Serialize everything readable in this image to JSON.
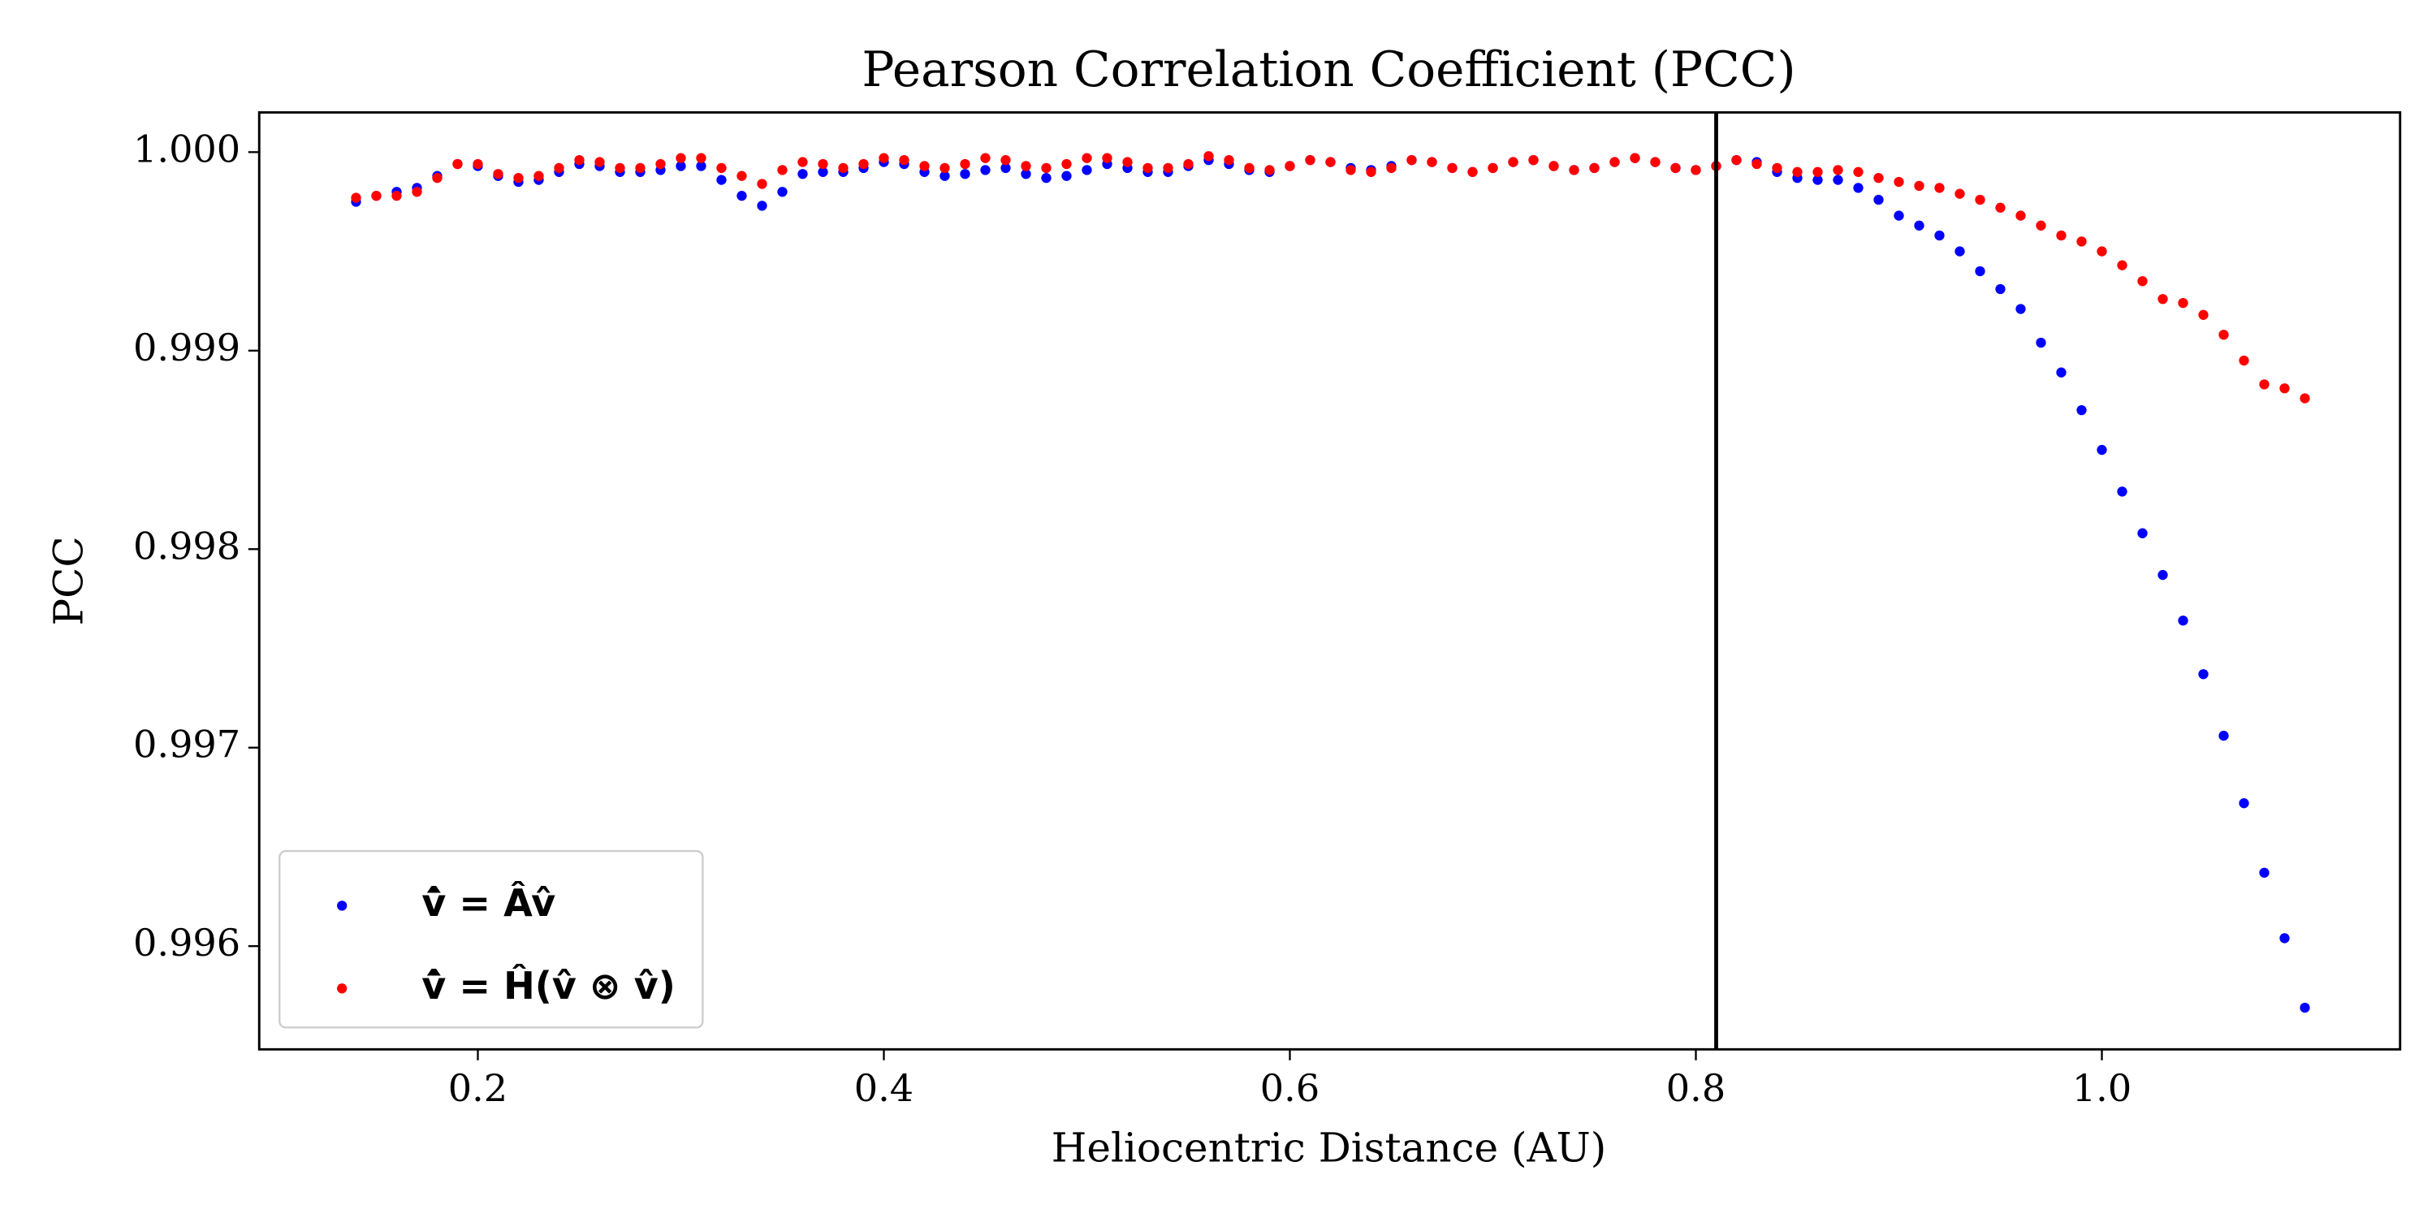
{
  "chart_data": {
    "type": "scatter",
    "title": "Pearson Correlation Coefficient (PCC)",
    "xlabel": "Heliocentric Distance (AU)",
    "ylabel": "PCC",
    "x": [
      0.14,
      0.15,
      0.16,
      0.17,
      0.18,
      0.19,
      0.2,
      0.21,
      0.22,
      0.23,
      0.24,
      0.25,
      0.26,
      0.27,
      0.28,
      0.29,
      0.3,
      0.31,
      0.32,
      0.33,
      0.34,
      0.35,
      0.36,
      0.37,
      0.38,
      0.39,
      0.4,
      0.41,
      0.42,
      0.43,
      0.44,
      0.45,
      0.46,
      0.47,
      0.48,
      0.49,
      0.5,
      0.51,
      0.52,
      0.53,
      0.54,
      0.55,
      0.56,
      0.57,
      0.58,
      0.59,
      0.6,
      0.61,
      0.62,
      0.63,
      0.64,
      0.65,
      0.66,
      0.67,
      0.68,
      0.69,
      0.7,
      0.71,
      0.72,
      0.73,
      0.74,
      0.75,
      0.76,
      0.77,
      0.78,
      0.79,
      0.8,
      0.81,
      0.82,
      0.83,
      0.84,
      0.85,
      0.86,
      0.87,
      0.88,
      0.89,
      0.9,
      0.91,
      0.92,
      0.93,
      0.94,
      0.95,
      0.96,
      0.97,
      0.98,
      0.99,
      1.0,
      1.01,
      1.02,
      1.03,
      1.04,
      1.05,
      1.06,
      1.07,
      1.08,
      1.09,
      1.1
    ],
    "series": [
      {
        "name": "v̂̇ = Âv̂",
        "color": "#0000ff",
        "values": [
          0.99975,
          0.99978,
          0.9998,
          0.99982,
          0.99988,
          0.99994,
          0.99993,
          0.99988,
          0.99985,
          0.99986,
          0.9999,
          0.99994,
          0.99993,
          0.9999,
          0.9999,
          0.99991,
          0.99993,
          0.99993,
          0.99986,
          0.99978,
          0.99973,
          0.9998,
          0.99989,
          0.9999,
          0.9999,
          0.99992,
          0.99995,
          0.99994,
          0.9999,
          0.99988,
          0.99989,
          0.99991,
          0.99992,
          0.99989,
          0.99987,
          0.99988,
          0.99991,
          0.99994,
          0.99992,
          0.9999,
          0.9999,
          0.99993,
          0.99996,
          0.99994,
          0.99991,
          0.9999,
          0.99993,
          0.99996,
          0.99995,
          0.99992,
          0.99991,
          0.99993,
          0.99996,
          0.99995,
          0.99992,
          0.9999,
          0.99992,
          0.99995,
          0.99996,
          0.99993,
          0.99991,
          0.99992,
          0.99995,
          0.99997,
          0.99995,
          0.99992,
          0.99991,
          0.99993,
          0.99996,
          0.99995,
          0.9999,
          0.99987,
          0.99986,
          0.99986,
          0.99982,
          0.99976,
          0.99968,
          0.99963,
          0.99958,
          0.9995,
          0.9994,
          0.99931,
          0.99921,
          0.99904,
          0.99889,
          0.9987,
          0.9985,
          0.99829,
          0.99808,
          0.99787,
          0.99764,
          0.99737,
          0.99706,
          0.99672,
          0.99637,
          0.99604,
          0.99569
        ]
      },
      {
        "name": "v̂̇ = Ĥ(v̂ ⊗ v̂)",
        "color": "#ff0000",
        "values": [
          0.99977,
          0.99978,
          0.99978,
          0.9998,
          0.99987,
          0.99994,
          0.99994,
          0.99989,
          0.99987,
          0.99988,
          0.99992,
          0.99996,
          0.99995,
          0.99992,
          0.99992,
          0.99994,
          0.99997,
          0.99997,
          0.99992,
          0.99988,
          0.99984,
          0.99991,
          0.99995,
          0.99994,
          0.99992,
          0.99994,
          0.99997,
          0.99996,
          0.99993,
          0.99992,
          0.99994,
          0.99997,
          0.99996,
          0.99993,
          0.99992,
          0.99994,
          0.99997,
          0.99997,
          0.99995,
          0.99992,
          0.99992,
          0.99994,
          0.99998,
          0.99996,
          0.99992,
          0.99991,
          0.99993,
          0.99996,
          0.99995,
          0.99991,
          0.9999,
          0.99992,
          0.99996,
          0.99995,
          0.99992,
          0.9999,
          0.99992,
          0.99995,
          0.99996,
          0.99993,
          0.99991,
          0.99992,
          0.99995,
          0.99997,
          0.99995,
          0.99992,
          0.99991,
          0.99993,
          0.99996,
          0.99994,
          0.99992,
          0.9999,
          0.9999,
          0.99991,
          0.9999,
          0.99987,
          0.99985,
          0.99983,
          0.99982,
          0.99979,
          0.99976,
          0.99972,
          0.99968,
          0.99963,
          0.99958,
          0.99955,
          0.9995,
          0.99943,
          0.99935,
          0.99926,
          0.99924,
          0.99918,
          0.99908,
          0.99895,
          0.99883,
          0.99881,
          0.99876
        ]
      }
    ],
    "vline": 0.81,
    "vline_color": "#000000",
    "xlim": [
      0.0923,
      1.1469
    ],
    "ylim": [
      0.99548,
      1.0002
    ],
    "xticks": [
      0.2,
      0.4,
      0.6,
      0.8,
      {
        "value": 1,
        "label": "1.0"
      }
    ],
    "yticks": [
      0.996,
      0.997,
      0.998,
      0.999,
      {
        "value": 1,
        "label": "1.000"
      }
    ],
    "grid": false,
    "legend": "lower left"
  }
}
